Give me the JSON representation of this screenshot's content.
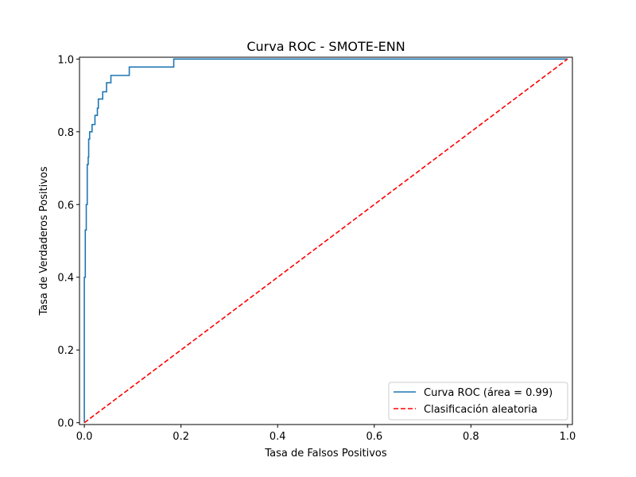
{
  "chart_data": {
    "type": "line",
    "title": "Curva ROC - SMOTE-ENN",
    "xlabel": "Tasa de Falsos Positivos",
    "ylabel": "Tasa de Verdaderos Positivos",
    "xlim": [
      -0.01,
      1.01
    ],
    "ylim": [
      -0.005,
      1.005
    ],
    "xticks": [
      {
        "value": 0.0,
        "label": "0.0"
      },
      {
        "value": 0.2,
        "label": "0.2"
      },
      {
        "value": 0.4,
        "label": "0.4"
      },
      {
        "value": 0.6,
        "label": "0.6"
      },
      {
        "value": 0.8,
        "label": "0.8"
      },
      {
        "value": 1.0,
        "label": "1.0"
      }
    ],
    "yticks": [
      {
        "value": 0.0,
        "label": "0.0"
      },
      {
        "value": 0.2,
        "label": "0.2"
      },
      {
        "value": 0.4,
        "label": "0.4"
      },
      {
        "value": 0.6,
        "label": "0.6"
      },
      {
        "value": 0.8,
        "label": "0.8"
      },
      {
        "value": 1.0,
        "label": "1.0"
      }
    ],
    "grid": false,
    "legend_position": "lower-right",
    "series": [
      {
        "name": "Curva ROC (área = 0.99)",
        "color": "#1f77b4",
        "style": "solid",
        "points": [
          [
            0.0,
            0.0
          ],
          [
            0.0,
            0.4
          ],
          [
            0.002,
            0.4
          ],
          [
            0.002,
            0.53
          ],
          [
            0.004,
            0.53
          ],
          [
            0.004,
            0.6
          ],
          [
            0.006,
            0.6
          ],
          [
            0.006,
            0.71
          ],
          [
            0.008,
            0.71
          ],
          [
            0.008,
            0.73
          ],
          [
            0.009,
            0.73
          ],
          [
            0.009,
            0.78
          ],
          [
            0.011,
            0.78
          ],
          [
            0.011,
            0.8
          ],
          [
            0.016,
            0.8
          ],
          [
            0.016,
            0.82
          ],
          [
            0.022,
            0.82
          ],
          [
            0.022,
            0.845
          ],
          [
            0.027,
            0.845
          ],
          [
            0.027,
            0.865
          ],
          [
            0.029,
            0.865
          ],
          [
            0.029,
            0.89
          ],
          [
            0.038,
            0.89
          ],
          [
            0.038,
            0.91
          ],
          [
            0.046,
            0.91
          ],
          [
            0.046,
            0.935
          ],
          [
            0.055,
            0.935
          ],
          [
            0.055,
            0.955
          ],
          [
            0.093,
            0.955
          ],
          [
            0.093,
            0.978
          ],
          [
            0.185,
            0.978
          ],
          [
            0.185,
            1.0
          ],
          [
            1.0,
            1.0
          ]
        ]
      },
      {
        "name": "Clasificación aleatoria",
        "color": "#ff0000",
        "style": "dashed",
        "points": [
          [
            0.0,
            0.0
          ],
          [
            1.0,
            1.0
          ]
        ]
      }
    ]
  }
}
